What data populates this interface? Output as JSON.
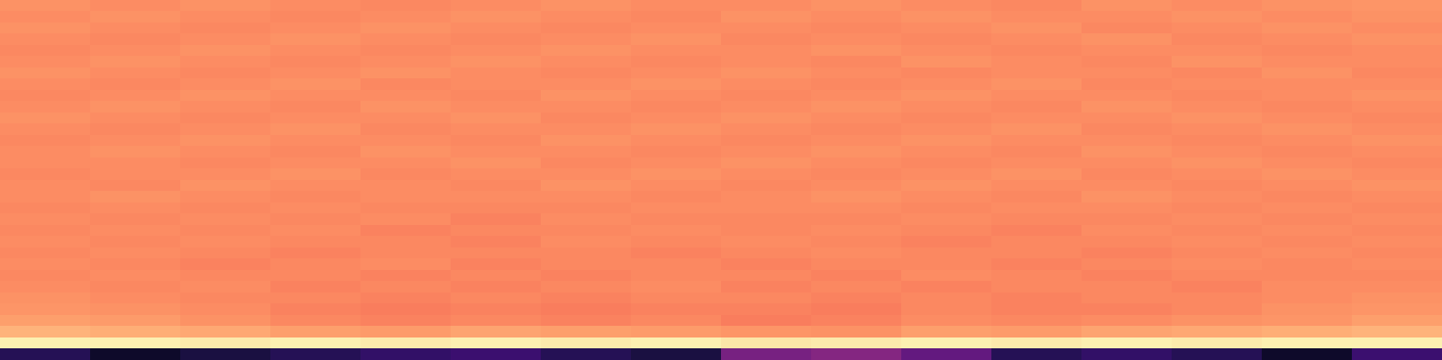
{
  "chart_data": {
    "type": "heatmap",
    "color": "magma",
    "color_range": [
      0,
      1
    ],
    "tick_labels": false,
    "cells": [
      [
        0.77,
        0.76,
        0.77,
        0.76,
        0.75,
        0.76,
        0.77,
        0.76,
        0.76,
        0.77,
        0.76,
        0.75,
        0.77,
        0.76,
        0.77,
        0.78
      ],
      [
        0.76,
        0.77,
        0.76,
        0.75,
        0.76,
        0.77,
        0.76,
        0.75,
        0.77,
        0.76,
        0.77,
        0.76,
        0.76,
        0.77,
        0.76,
        0.77
      ],
      [
        0.77,
        0.76,
        0.75,
        0.76,
        0.77,
        0.76,
        0.75,
        0.76,
        0.76,
        0.75,
        0.76,
        0.77,
        0.75,
        0.76,
        0.77,
        0.76
      ],
      [
        0.76,
        0.75,
        0.76,
        0.77,
        0.76,
        0.75,
        0.76,
        0.77,
        0.75,
        0.76,
        0.75,
        0.76,
        0.77,
        0.75,
        0.76,
        0.77
      ],
      [
        0.75,
        0.76,
        0.77,
        0.76,
        0.75,
        0.76,
        0.77,
        0.76,
        0.76,
        0.77,
        0.76,
        0.75,
        0.76,
        0.76,
        0.75,
        0.76
      ],
      [
        0.76,
        0.77,
        0.76,
        0.75,
        0.76,
        0.77,
        0.76,
        0.75,
        0.76,
        0.75,
        0.77,
        0.76,
        0.75,
        0.77,
        0.76,
        0.76
      ],
      [
        0.77,
        0.76,
        0.75,
        0.76,
        0.77,
        0.76,
        0.75,
        0.76,
        0.77,
        0.76,
        0.75,
        0.76,
        0.76,
        0.75,
        0.77,
        0.75
      ],
      [
        0.76,
        0.75,
        0.76,
        0.77,
        0.75,
        0.76,
        0.76,
        0.77,
        0.76,
        0.75,
        0.76,
        0.77,
        0.75,
        0.76,
        0.76,
        0.76
      ],
      [
        0.75,
        0.76,
        0.77,
        0.76,
        0.76,
        0.75,
        0.77,
        0.76,
        0.75,
        0.76,
        0.77,
        0.76,
        0.76,
        0.75,
        0.76,
        0.77
      ],
      [
        0.76,
        0.77,
        0.76,
        0.75,
        0.77,
        0.76,
        0.76,
        0.75,
        0.76,
        0.77,
        0.76,
        0.75,
        0.77,
        0.76,
        0.75,
        0.76
      ],
      [
        0.77,
        0.76,
        0.75,
        0.76,
        0.76,
        0.77,
        0.75,
        0.76,
        0.77,
        0.76,
        0.75,
        0.76,
        0.76,
        0.77,
        0.76,
        0.75
      ],
      [
        0.76,
        0.75,
        0.76,
        0.77,
        0.75,
        0.76,
        0.76,
        0.77,
        0.76,
        0.75,
        0.76,
        0.77,
        0.75,
        0.76,
        0.77,
        0.76
      ],
      [
        0.75,
        0.76,
        0.77,
        0.76,
        0.76,
        0.75,
        0.77,
        0.76,
        0.75,
        0.76,
        0.77,
        0.76,
        0.76,
        0.75,
        0.76,
        0.77
      ],
      [
        0.76,
        0.77,
        0.76,
        0.75,
        0.77,
        0.76,
        0.76,
        0.75,
        0.76,
        0.77,
        0.76,
        0.75,
        0.77,
        0.76,
        0.75,
        0.76
      ],
      [
        0.76,
        0.76,
        0.75,
        0.76,
        0.76,
        0.77,
        0.75,
        0.76,
        0.77,
        0.76,
        0.75,
        0.76,
        0.76,
        0.77,
        0.76,
        0.75
      ],
      [
        0.75,
        0.76,
        0.76,
        0.77,
        0.75,
        0.76,
        0.76,
        0.77,
        0.76,
        0.75,
        0.76,
        0.77,
        0.75,
        0.76,
        0.77,
        0.76
      ],
      [
        0.76,
        0.75,
        0.77,
        0.76,
        0.76,
        0.75,
        0.77,
        0.76,
        0.75,
        0.76,
        0.77,
        0.76,
        0.76,
        0.75,
        0.76,
        0.77
      ],
      [
        0.76,
        0.77,
        0.76,
        0.75,
        0.76,
        0.76,
        0.76,
        0.75,
        0.76,
        0.77,
        0.76,
        0.75,
        0.77,
        0.76,
        0.75,
        0.76
      ],
      [
        0.75,
        0.76,
        0.75,
        0.76,
        0.75,
        0.75,
        0.75,
        0.76,
        0.76,
        0.76,
        0.75,
        0.76,
        0.76,
        0.75,
        0.76,
        0.75
      ],
      [
        0.76,
        0.75,
        0.76,
        0.75,
        0.76,
        0.74,
        0.76,
        0.75,
        0.75,
        0.75,
        0.76,
        0.75,
        0.75,
        0.76,
        0.75,
        0.76
      ],
      [
        0.75,
        0.76,
        0.75,
        0.76,
        0.74,
        0.75,
        0.75,
        0.76,
        0.75,
        0.76,
        0.75,
        0.74,
        0.76,
        0.75,
        0.76,
        0.75
      ],
      [
        0.76,
        0.75,
        0.76,
        0.75,
        0.75,
        0.74,
        0.76,
        0.75,
        0.76,
        0.75,
        0.74,
        0.75,
        0.75,
        0.76,
        0.75,
        0.76
      ],
      [
        0.75,
        0.76,
        0.75,
        0.74,
        0.75,
        0.75,
        0.75,
        0.74,
        0.75,
        0.76,
        0.75,
        0.75,
        0.74,
        0.75,
        0.76,
        0.75
      ],
      [
        0.76,
        0.75,
        0.74,
        0.75,
        0.76,
        0.74,
        0.75,
        0.75,
        0.74,
        0.75,
        0.75,
        0.74,
        0.75,
        0.76,
        0.75,
        0.76
      ],
      [
        0.75,
        0.76,
        0.75,
        0.75,
        0.74,
        0.75,
        0.74,
        0.75,
        0.75,
        0.74,
        0.76,
        0.75,
        0.74,
        0.75,
        0.75,
        0.75
      ],
      [
        0.76,
        0.75,
        0.76,
        0.74,
        0.75,
        0.74,
        0.75,
        0.76,
        0.74,
        0.75,
        0.74,
        0.75,
        0.75,
        0.74,
        0.76,
        0.76
      ],
      [
        0.77,
        0.76,
        0.75,
        0.75,
        0.74,
        0.75,
        0.74,
        0.75,
        0.75,
        0.74,
        0.75,
        0.74,
        0.75,
        0.75,
        0.76,
        0.77
      ],
      [
        0.78,
        0.77,
        0.76,
        0.74,
        0.73,
        0.74,
        0.73,
        0.74,
        0.74,
        0.73,
        0.75,
        0.74,
        0.74,
        0.75,
        0.77,
        0.78
      ],
      [
        0.8,
        0.79,
        0.77,
        0.75,
        0.74,
        0.75,
        0.74,
        0.75,
        0.73,
        0.74,
        0.76,
        0.75,
        0.76,
        0.77,
        0.78,
        0.8
      ],
      [
        0.84,
        0.83,
        0.82,
        0.8,
        0.79,
        0.81,
        0.8,
        0.79,
        0.78,
        0.77,
        0.8,
        0.79,
        0.81,
        0.82,
        0.83,
        0.84
      ],
      [
        0.97,
        0.97,
        0.96,
        0.97,
        0.96,
        0.97,
        0.96,
        0.97,
        0.95,
        0.96,
        0.97,
        0.96,
        0.97,
        0.96,
        0.97,
        0.97
      ],
      [
        0.15,
        0.08,
        0.12,
        0.15,
        0.18,
        0.2,
        0.15,
        0.12,
        0.35,
        0.38,
        0.3,
        0.15,
        0.18,
        0.15,
        0.08,
        0.2
      ]
    ]
  }
}
